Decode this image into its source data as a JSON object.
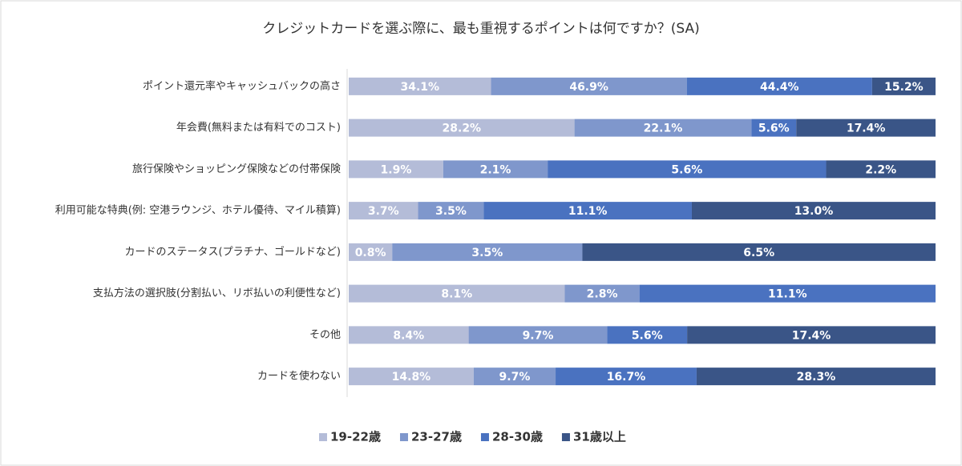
{
  "chart_data": {
    "type": "bar",
    "orientation": "horizontal",
    "stacked": "percent",
    "title": "クレジットカードを選ぶ際に、最も重視するポイントは何ですか？(SA)",
    "categories": [
      "ポイント還元率やキャッシュバックの高さ",
      "年会費(無料または有料でのコスト)",
      "旅行保険やショッピング保険などの付帯保険",
      "利用可能な特典(例: 空港ラウンジ、ホテル優待、マイル積算)",
      "カードのステータス(プラチナ、ゴールドなど)",
      "支払方法の選択肢(分割払い、リボ払いの利便性など)",
      "その他",
      "カードを使わない"
    ],
    "series": [
      {
        "name": "19-22歳",
        "color": "#b4bcd8",
        "values": [
          34.1,
          28.2,
          1.9,
          3.7,
          0.8,
          8.1,
          8.4,
          14.8
        ],
        "value_labels": [
          "34.1%",
          "28.2%",
          "1.9%",
          "3.7%",
          "0.8%",
          "8.1%",
          "8.4%",
          "14.8%"
        ]
      },
      {
        "name": "23-27歳",
        "color": "#7f97cc",
        "values": [
          46.9,
          22.1,
          2.1,
          3.5,
          3.5,
          2.8,
          9.7,
          9.7
        ],
        "value_labels": [
          "46.9%",
          "22.1%",
          "2.1%",
          "3.5%",
          "3.5%",
          "2.8%",
          "9.7%",
          "9.7%"
        ]
      },
      {
        "name": "28-30歳",
        "color": "#4a72c0",
        "values": [
          44.4,
          5.6,
          5.6,
          11.1,
          0,
          11.1,
          5.6,
          16.7
        ],
        "value_labels": [
          "44.4%",
          "5.6%",
          "5.6%",
          "11.1%",
          null,
          "11.1%",
          "5.6%",
          "16.7%"
        ]
      },
      {
        "name": "31歳以上",
        "color": "#3a5587",
        "values": [
          15.2,
          17.4,
          2.2,
          13.0,
          6.5,
          0,
          17.4,
          28.3
        ],
        "value_labels": [
          "15.2%",
          "17.4%",
          "2.2%",
          "13.0%",
          "6.5%",
          null,
          "17.4%",
          "28.3%"
        ]
      }
    ],
    "legend": "bottom"
  }
}
